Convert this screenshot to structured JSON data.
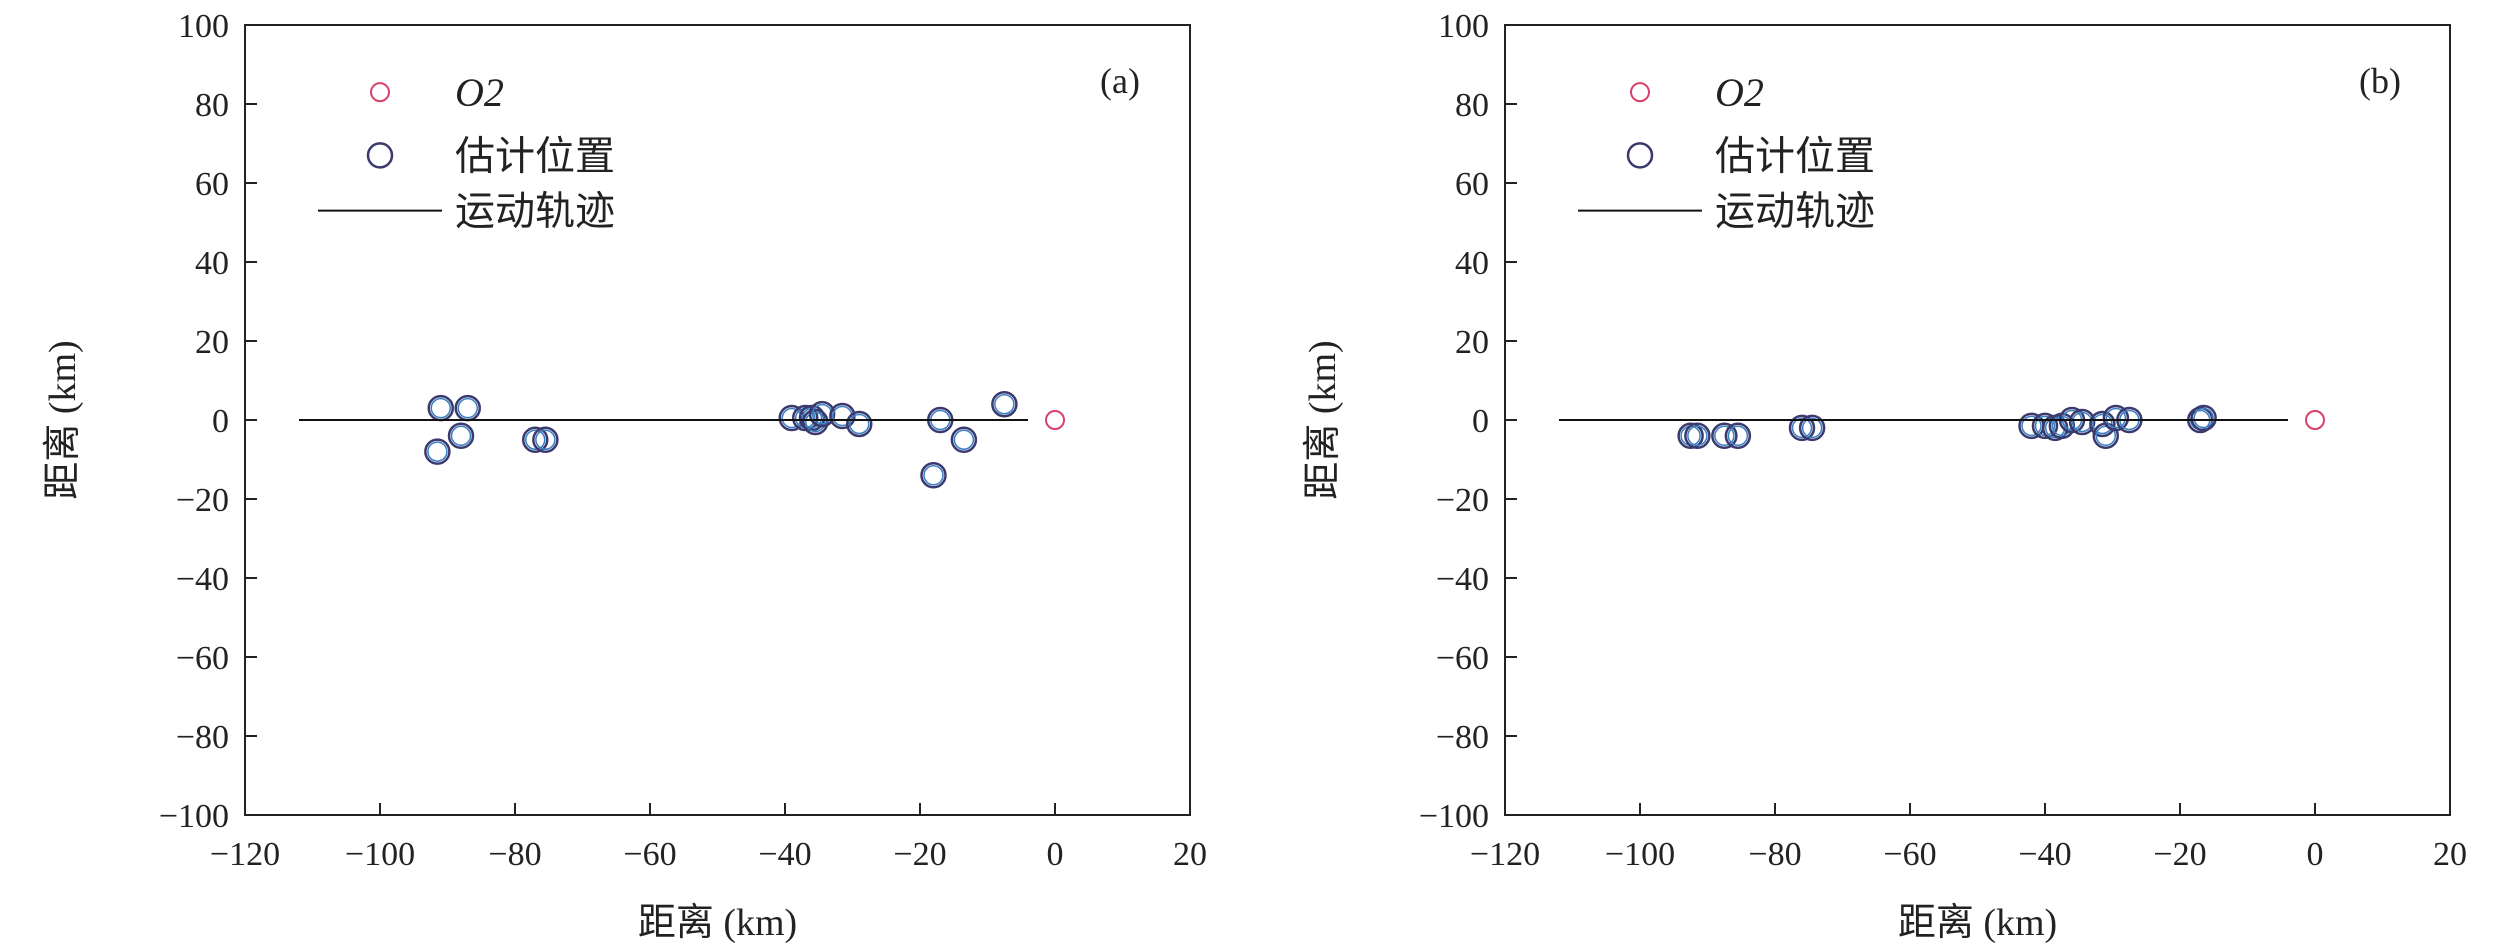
{
  "figure": {
    "panels_count": 2
  },
  "chart_data": [
    {
      "type": "scatter",
      "panel_label": "(a)",
      "xlabel": "距离 (km)",
      "ylabel": "距离 (km)",
      "xlim": [
        -120,
        20
      ],
      "ylim": [
        -100,
        100
      ],
      "xticks": [
        "−120",
        "−100",
        "−80",
        "−60",
        "−40",
        "−20",
        "0",
        "20"
      ],
      "yticks": [
        "100",
        "80",
        "60",
        "40",
        "20",
        "0",
        "−20",
        "−40",
        "−60",
        "−80",
        "−100"
      ],
      "grid": false,
      "legend_position": "top-left",
      "legend": {
        "o2": "O2",
        "estimate": "估计位置",
        "track": "运动轨迹"
      },
      "colors": {
        "o2": "#d9406b",
        "estimate_edge": "#3a3a6e",
        "estimate_inner": "#3a7fc2",
        "track": "#111111"
      },
      "series": [
        {
          "name": "O2",
          "kind": "point",
          "points": [
            [
              0,
              0
            ]
          ]
        },
        {
          "name": "估计位置",
          "kind": "point",
          "points": [
            [
              -91,
              3
            ],
            [
              -87,
              3
            ],
            [
              -88,
              -4
            ],
            [
              -91.5,
              -8
            ],
            [
              -77,
              -5
            ],
            [
              -75.5,
              -5
            ],
            [
              -39,
              0.5
            ],
            [
              -37,
              0.5
            ],
            [
              -36,
              0.5
            ],
            [
              -35.5,
              -0.5
            ],
            [
              -34.5,
              1.5
            ],
            [
              -31.5,
              1
            ],
            [
              -29,
              -1
            ],
            [
              -17,
              0
            ],
            [
              -18,
              -14
            ],
            [
              -13.5,
              -5
            ],
            [
              -7.5,
              4
            ]
          ]
        },
        {
          "name": "运动轨迹",
          "kind": "line",
          "points": [
            [
              -112,
              0
            ],
            [
              -4,
              0
            ]
          ]
        }
      ]
    },
    {
      "type": "scatter",
      "panel_label": "(b)",
      "xlabel": "距离 (km)",
      "ylabel": "距离 (km)",
      "xlim": [
        -120,
        20
      ],
      "ylim": [
        -100,
        100
      ],
      "xticks": [
        "−120",
        "−100",
        "−80",
        "−60",
        "−40",
        "−20",
        "0",
        "20"
      ],
      "yticks": [
        "100",
        "80",
        "60",
        "40",
        "20",
        "0",
        "−20",
        "−40",
        "−60",
        "−80",
        "−100"
      ],
      "grid": false,
      "legend_position": "top-left",
      "legend": {
        "o2": "O2",
        "estimate": "估计位置",
        "track": "运动轨迹"
      },
      "colors": {
        "o2": "#d9406b",
        "estimate_edge": "#3a3a6e",
        "estimate_inner": "#3a7fc2",
        "track": "#111111"
      },
      "series": [
        {
          "name": "O2",
          "kind": "point",
          "points": [
            [
              0,
              0
            ]
          ]
        },
        {
          "name": "估计位置",
          "kind": "point",
          "points": [
            [
              -92.5,
              -4
            ],
            [
              -91.5,
              -4
            ],
            [
              -87.5,
              -4
            ],
            [
              -85.5,
              -4
            ],
            [
              -76,
              -2
            ],
            [
              -74.5,
              -2
            ],
            [
              -42,
              -1.5
            ],
            [
              -40,
              -1.5
            ],
            [
              -38.5,
              -2
            ],
            [
              -37.5,
              -1.5
            ],
            [
              -36,
              0
            ],
            [
              -34.5,
              -0.5
            ],
            [
              -31.5,
              -1
            ],
            [
              -31,
              -4
            ],
            [
              -29.5,
              0.5
            ],
            [
              -27.5,
              0
            ],
            [
              -17,
              0
            ],
            [
              -16.5,
              0.5
            ]
          ]
        },
        {
          "name": "运动轨迹",
          "kind": "line",
          "points": [
            [
              -112,
              0
            ],
            [
              -4,
              0
            ]
          ]
        }
      ]
    }
  ]
}
